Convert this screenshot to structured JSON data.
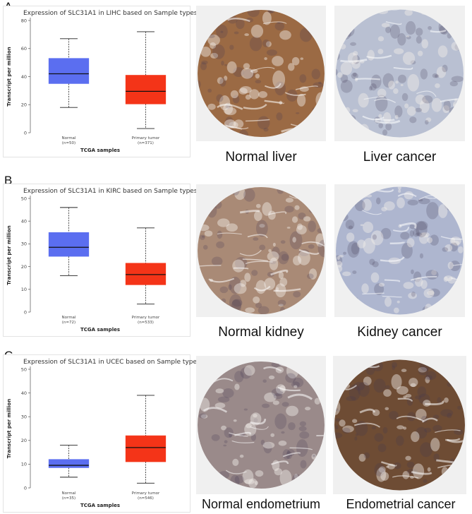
{
  "panels": [
    {
      "letter": "A",
      "captions": [
        "Normal liver",
        "Liver cancer"
      ],
      "tissue_colors": {
        "normal": "#9b6a44",
        "cancer": "#b9c0d2"
      }
    },
    {
      "letter": "B",
      "captions": [
        "Normal kidney",
        "Kidney cancer"
      ],
      "tissue_colors": {
        "normal": "#a98a76",
        "cancer": "#aeb6cf"
      }
    },
    {
      "letter": "C",
      "captions": [
        "Normal endometrium",
        "Endometrial cancer"
      ],
      "tissue_colors": {
        "normal": "#9a8a8a",
        "cancer": "#6e4c34"
      }
    }
  ],
  "chart_data": [
    {
      "type": "box",
      "title": "Expression of SLC31A1 in LIHC based on Sample types",
      "xlabel": "TCGA samples",
      "ylabel": "Transcript per million",
      "ylim": [
        0,
        80
      ],
      "yticks": [
        0,
        20,
        40,
        60,
        80
      ],
      "categories": [
        "Normal",
        "Primary tumor"
      ],
      "counts": [
        "(n=50)",
        "(n=371)"
      ],
      "colors": [
        "#5b6ef0",
        "#f43418"
      ],
      "boxes": [
        {
          "min": 18,
          "q1": 35,
          "median": 42,
          "q3": 53,
          "max": 67
        },
        {
          "min": 3,
          "q1": 20.5,
          "median": 29.5,
          "q3": 41,
          "max": 72
        }
      ]
    },
    {
      "type": "box",
      "title": "Expression of SLC31A1 in KIRC based on Sample types",
      "xlabel": "TCGA samples",
      "ylabel": "Transcript per million",
      "ylim": [
        0,
        50
      ],
      "yticks": [
        0,
        10,
        20,
        30,
        40,
        50
      ],
      "categories": [
        "Normal",
        "Primary tumor"
      ],
      "counts": [
        "(n=72)",
        "(n=533)"
      ],
      "colors": [
        "#5b6ef0",
        "#f43418"
      ],
      "boxes": [
        {
          "min": 16,
          "q1": 24.5,
          "median": 28.5,
          "q3": 35,
          "max": 46
        },
        {
          "min": 3.5,
          "q1": 12,
          "median": 16.5,
          "q3": 21.5,
          "max": 37
        }
      ]
    },
    {
      "type": "box",
      "title": "Expression of SLC31A1 in UCEC based on Sample types",
      "xlabel": "TCGA samples",
      "ylabel": "Transcript per million",
      "ylim": [
        0,
        50
      ],
      "yticks": [
        0,
        10,
        20,
        30,
        40,
        50
      ],
      "categories": [
        "Normal",
        "Primary tumor"
      ],
      "counts": [
        "(n=35)",
        "(n=546)"
      ],
      "colors": [
        "#5b6ef0",
        "#f43418"
      ],
      "boxes": [
        {
          "min": 4.5,
          "q1": 8.5,
          "median": 9.5,
          "q3": 12,
          "max": 18
        },
        {
          "min": 2,
          "q1": 11,
          "median": 17,
          "q3": 22,
          "max": 39
        }
      ]
    }
  ]
}
